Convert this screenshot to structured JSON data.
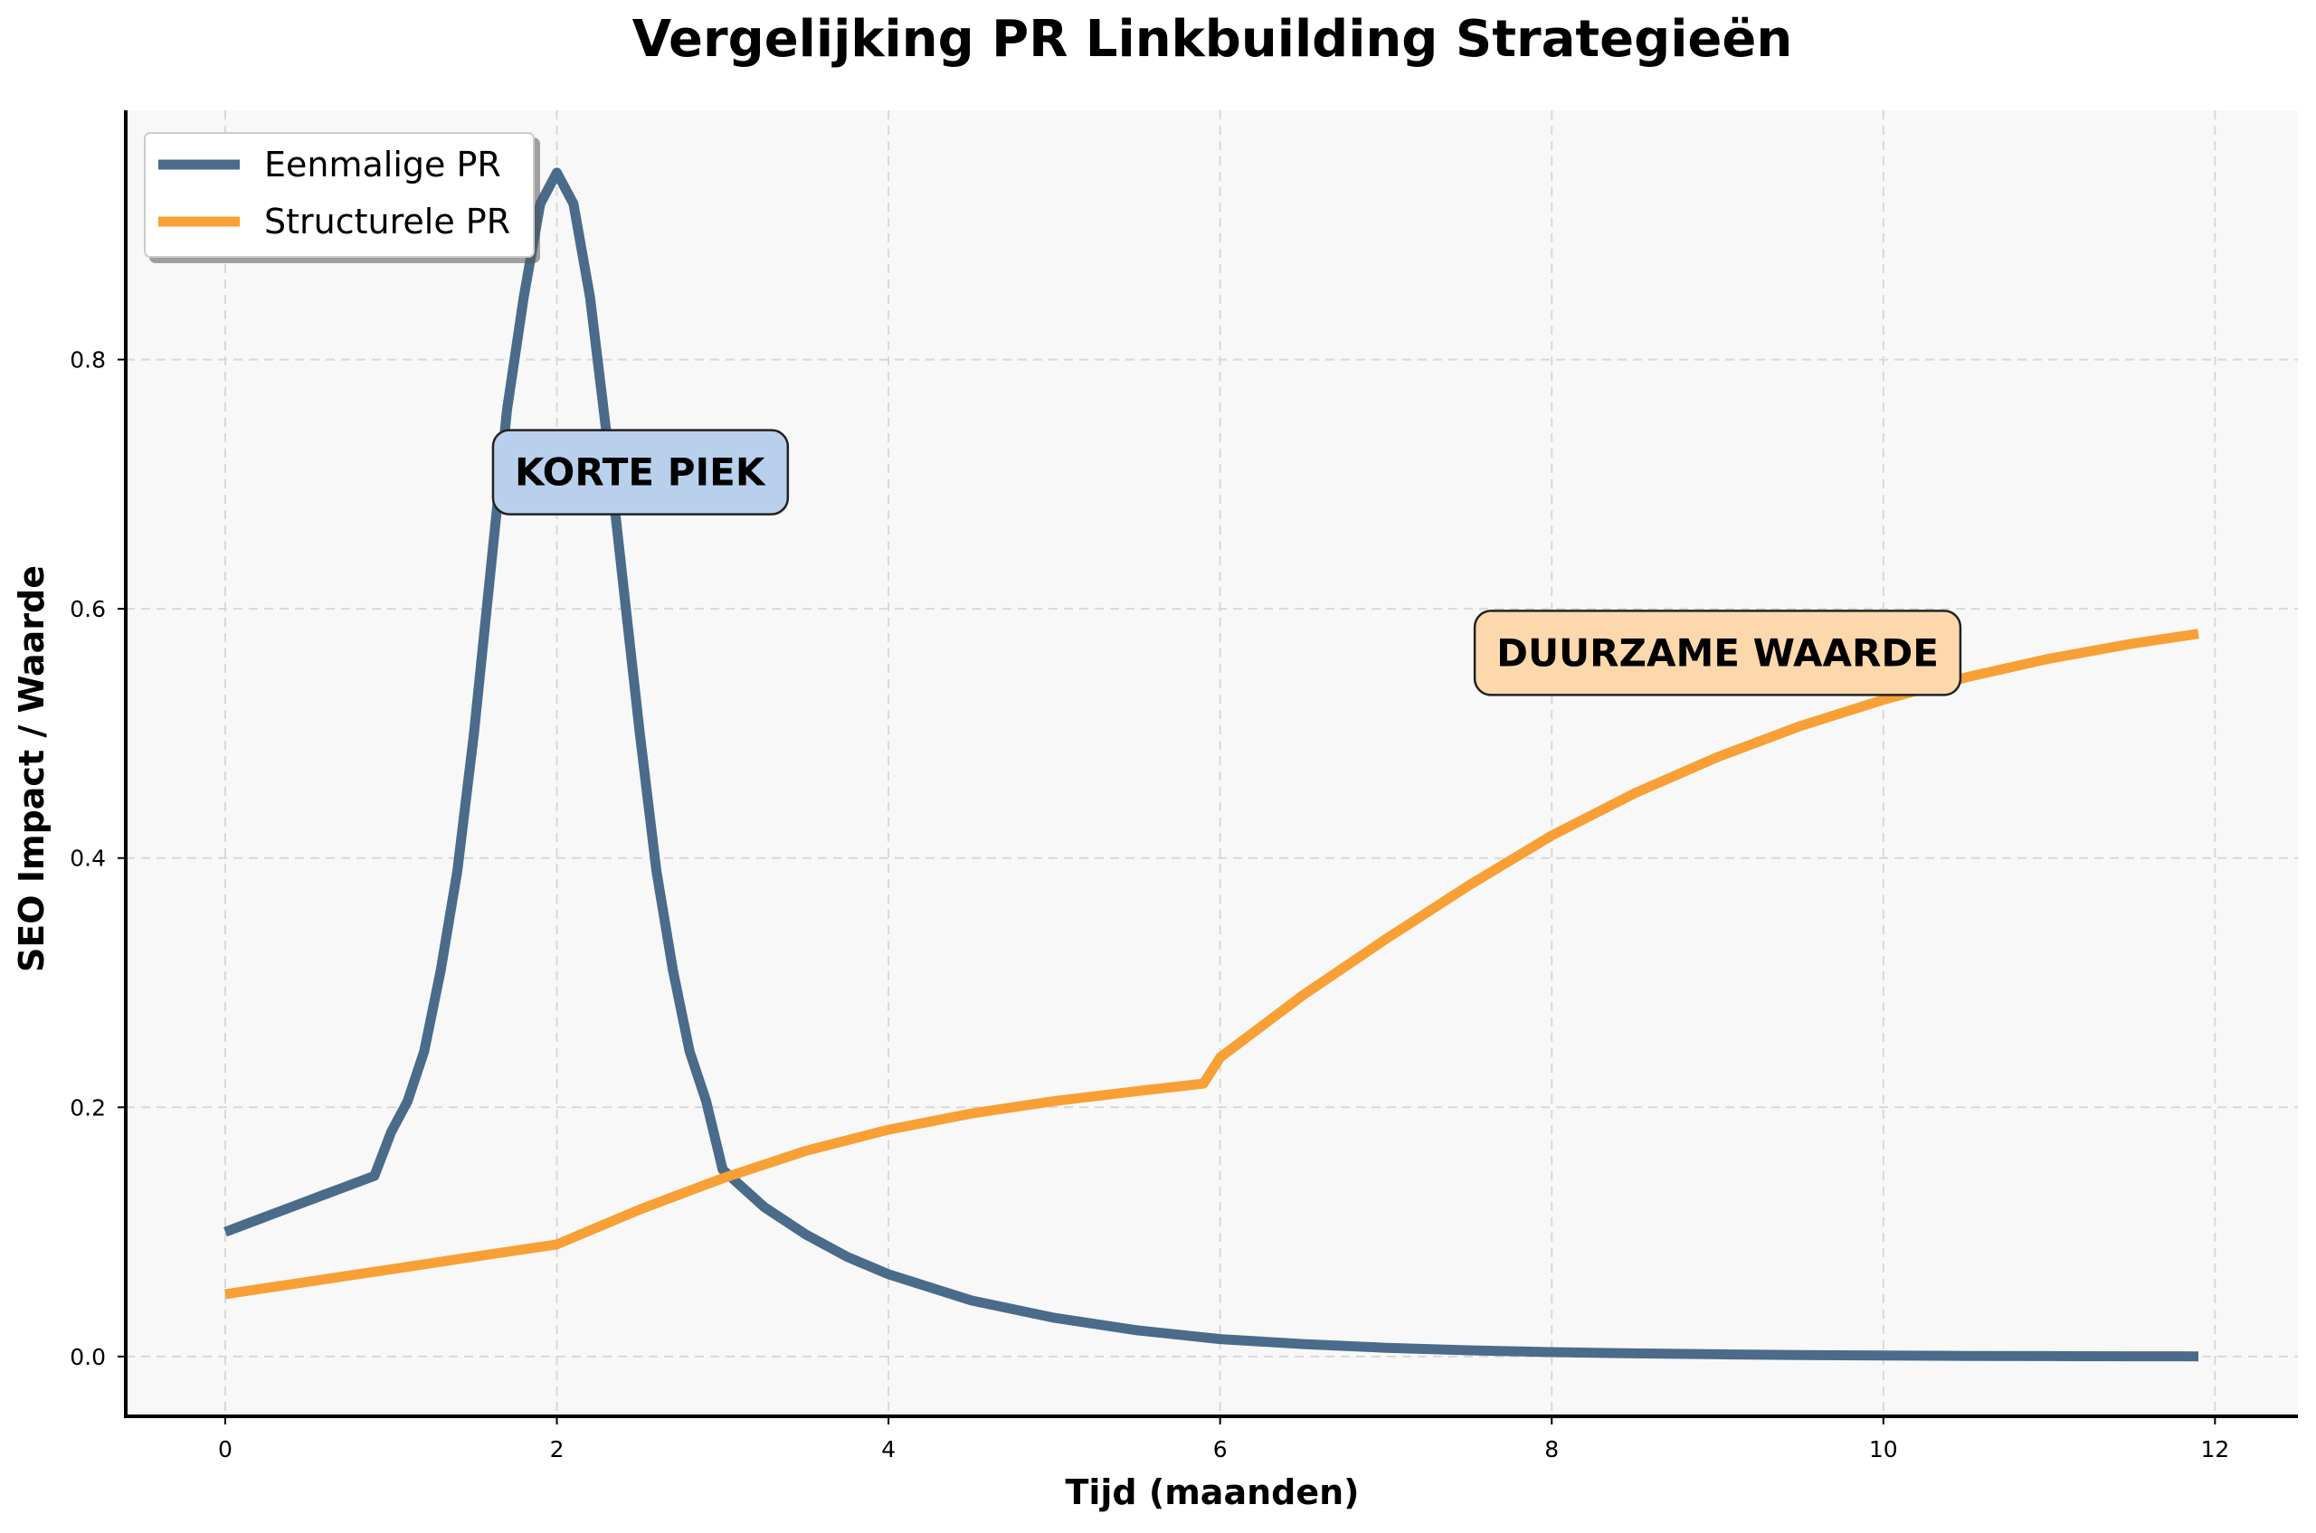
{
  "chart_data": {
    "type": "line",
    "title": "Vergelijking PR Linkbuilding Strategieën",
    "xlabel": "Tijd (maanden)",
    "ylabel": "SEO Impact / Waarde",
    "xlim": [
      -0.6,
      12.5
    ],
    "ylim": [
      -0.048,
      1.0
    ],
    "xticks": [
      0,
      2,
      4,
      6,
      8,
      10,
      12
    ],
    "xtick_labels": [
      "0",
      "2",
      "4",
      "6",
      "8",
      "10",
      "12"
    ],
    "yticks": [
      0.0,
      0.2,
      0.4,
      0.6,
      0.8
    ],
    "ytick_labels": [
      "0.0",
      "0.2",
      "0.4",
      "0.6",
      "0.8"
    ],
    "grid": true,
    "legend_position": "top-left",
    "background_color": "#f8f8f8",
    "series": [
      {
        "name": "Eenmalige PR",
        "color": "#4a6b8a",
        "x": [
          0.0,
          0.1,
          0.2,
          0.3,
          0.4,
          0.5,
          0.6,
          0.7,
          0.8,
          0.9,
          1.0,
          1.1,
          1.2,
          1.3,
          1.4,
          1.5,
          1.6,
          1.7,
          1.8,
          1.9,
          2.0,
          2.1,
          2.2,
          2.3,
          2.4,
          2.5,
          2.6,
          2.7,
          2.8,
          2.9,
          3.0,
          3.25,
          3.5,
          3.75,
          4.0,
          4.5,
          5.0,
          5.5,
          6.0,
          6.5,
          7.0,
          7.5,
          8.0,
          8.5,
          9.0,
          9.5,
          10.0,
          10.5,
          11.0,
          11.5,
          11.9
        ],
        "y": [
          0.1,
          0.105,
          0.11,
          0.115,
          0.12,
          0.125,
          0.13,
          0.135,
          0.14,
          0.145,
          0.18,
          0.205,
          0.245,
          0.31,
          0.39,
          0.5,
          0.63,
          0.76,
          0.85,
          0.925,
          0.95,
          0.925,
          0.85,
          0.74,
          0.62,
          0.5,
          0.39,
          0.31,
          0.245,
          0.205,
          0.15,
          0.12,
          0.098,
          0.08,
          0.066,
          0.045,
          0.031,
          0.021,
          0.014,
          0.01,
          0.007,
          0.005,
          0.0035,
          0.0025,
          0.0018,
          0.0012,
          0.0008,
          0.0005,
          0.0003,
          0.0002,
          0.0001
        ]
      },
      {
        "name": "Structurele PR",
        "color": "#f8a035",
        "x": [
          0.0,
          0.5,
          1.0,
          1.5,
          2.0,
          2.25,
          2.5,
          3.0,
          3.5,
          4.0,
          4.5,
          5.0,
          5.5,
          5.9,
          6.0,
          6.5,
          7.0,
          7.5,
          8.0,
          8.5,
          9.0,
          9.5,
          10.0,
          10.5,
          11.0,
          11.5,
          11.9
        ],
        "y": [
          0.05,
          0.06,
          0.07,
          0.08,
          0.09,
          0.104,
          0.118,
          0.143,
          0.165,
          0.182,
          0.195,
          0.205,
          0.213,
          0.219,
          0.24,
          0.29,
          0.335,
          0.378,
          0.418,
          0.452,
          0.481,
          0.506,
          0.527,
          0.545,
          0.56,
          0.572,
          0.58
        ]
      }
    ],
    "annotations": [
      {
        "text": "KORTE PIEK",
        "x": 2.5,
        "y": 0.71,
        "fill": "#b9d0ec"
      },
      {
        "text": "DUURZAME WAARDE",
        "x": 9.0,
        "y": 0.565,
        "fill": "#fdd8ac"
      }
    ]
  }
}
